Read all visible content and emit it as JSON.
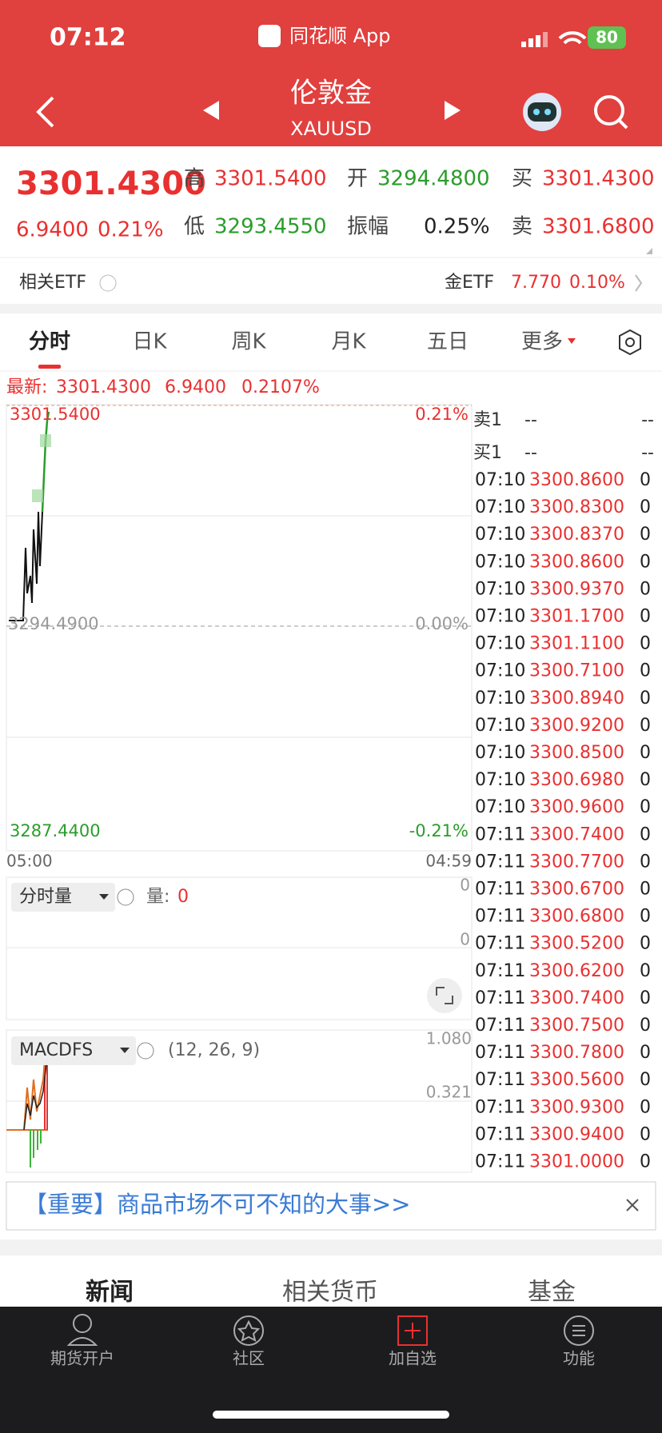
{
  "status": {
    "time": "07:12",
    "app": "同花顺 App",
    "battery": "80"
  },
  "header": {
    "title": "伦敦金",
    "subtitle": "XAUUSD"
  },
  "quote": {
    "price": "3301.4300",
    "change": "6.9400",
    "pct": "0.21%",
    "high_label": "高",
    "high": "3301.5400",
    "open_label": "开",
    "open": "3294.4800",
    "buy_label": "买",
    "buy": "3301.4300",
    "low_label": "低",
    "low": "3293.4550",
    "amp_label": "振幅",
    "amp": "0.25%",
    "sell_label": "卖",
    "sell": "3301.6800"
  },
  "etf": {
    "label": "相关ETF",
    "name": "金ETF",
    "price": "7.770",
    "pct": "0.10%"
  },
  "tabs": [
    "分时",
    "日K",
    "周K",
    "月K",
    "五日",
    "更多"
  ],
  "chart": {
    "latest_label": "最新:",
    "latest": "3301.4300",
    "change": "6.9400",
    "pct": "0.2107%",
    "y_top": "3301.5400",
    "y_mid": "3294.4900",
    "y_bot": "3287.4400",
    "pct_top": "0.21%",
    "pct_mid": "0.00%",
    "pct_bot": "-0.21%",
    "x_start": "05:00",
    "x_end": "04:59"
  },
  "volume": {
    "selector": "分时量",
    "label": "量:",
    "value": "0",
    "ticks": [
      "0",
      "0"
    ]
  },
  "macd": {
    "selector": "MACDFS",
    "params": "(12, 26, 9)",
    "ticks": [
      "1.080",
      "0.321"
    ]
  },
  "orderbook": {
    "sell": "卖1",
    "sell_price": "--",
    "sell_vol": "--",
    "buy": "买1",
    "buy_price": "--",
    "buy_vol": "--"
  },
  "trades": [
    [
      "07:10",
      "3300.8600",
      "0"
    ],
    [
      "07:10",
      "3300.8300",
      "0"
    ],
    [
      "07:10",
      "3300.8370",
      "0"
    ],
    [
      "07:10",
      "3300.8600",
      "0"
    ],
    [
      "07:10",
      "3300.9370",
      "0"
    ],
    [
      "07:10",
      "3301.1700",
      "0"
    ],
    [
      "07:10",
      "3301.1100",
      "0"
    ],
    [
      "07:10",
      "3300.7100",
      "0"
    ],
    [
      "07:10",
      "3300.8940",
      "0"
    ],
    [
      "07:10",
      "3300.9200",
      "0"
    ],
    [
      "07:10",
      "3300.8500",
      "0"
    ],
    [
      "07:10",
      "3300.6980",
      "0"
    ],
    [
      "07:10",
      "3300.9600",
      "0"
    ],
    [
      "07:11",
      "3300.7400",
      "0"
    ],
    [
      "07:11",
      "3300.7700",
      "0"
    ],
    [
      "07:11",
      "3300.6700",
      "0"
    ],
    [
      "07:11",
      "3300.6800",
      "0"
    ],
    [
      "07:11",
      "3300.5200",
      "0"
    ],
    [
      "07:11",
      "3300.6200",
      "0"
    ],
    [
      "07:11",
      "3300.7400",
      "0"
    ],
    [
      "07:11",
      "3300.7500",
      "0"
    ],
    [
      "07:11",
      "3300.7800",
      "0"
    ],
    [
      "07:11",
      "3300.5600",
      "0"
    ],
    [
      "07:11",
      "3300.9300",
      "0"
    ],
    [
      "07:11",
      "3300.9400",
      "0"
    ],
    [
      "07:11",
      "3301.0000",
      "0"
    ]
  ],
  "banner": "【重要】商品市场不可不知的大事>>",
  "news_tabs": [
    "新闻",
    "相关货币",
    "基金"
  ],
  "nav": [
    "期货开户",
    "社区",
    "加自选",
    "功能"
  ]
}
